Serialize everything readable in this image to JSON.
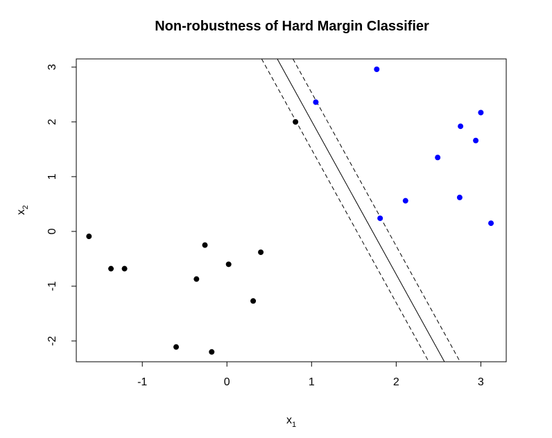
{
  "chart_data": {
    "type": "scatter",
    "title": "Non-robustness of Hard Margin Classifier",
    "xlabel": {
      "base": "x",
      "sub": "1"
    },
    "ylabel": {
      "base": "x",
      "sub": "2"
    },
    "xlim": [
      -1.78,
      3.3
    ],
    "ylim": [
      -2.38,
      3.15
    ],
    "xticks": [
      -1,
      0,
      1,
      2,
      3
    ],
    "yticks": [
      -2,
      -1,
      0,
      1,
      2,
      3
    ],
    "xtick_labels": [
      "-1",
      "0",
      "1",
      "2",
      "3"
    ],
    "ytick_labels": [
      "-2",
      "-1",
      "0",
      "1",
      "2",
      "3"
    ],
    "grid": false,
    "series": [
      {
        "color": "#000000",
        "points": [
          [
            -1.63,
            -0.09
          ],
          [
            -1.37,
            -0.68
          ],
          [
            -1.21,
            -0.68
          ],
          [
            -0.6,
            -2.11
          ],
          [
            -0.36,
            -0.87
          ],
          [
            -0.26,
            -0.25
          ],
          [
            -0.18,
            -2.2
          ],
          [
            0.02,
            -0.6
          ],
          [
            0.31,
            -1.27
          ],
          [
            0.4,
            -0.38
          ],
          [
            0.81,
            2.0
          ]
        ]
      },
      {
        "color": "#0000ff",
        "points": [
          [
            1.05,
            2.36
          ],
          [
            1.77,
            2.96
          ],
          [
            1.81,
            0.24
          ],
          [
            2.11,
            0.56
          ],
          [
            2.49,
            1.35
          ],
          [
            2.76,
            1.92
          ],
          [
            2.75,
            0.62
          ],
          [
            2.94,
            1.66
          ],
          [
            3.0,
            2.17
          ],
          [
            3.12,
            0.15
          ]
        ]
      }
    ],
    "lines": [
      {
        "style": "solid",
        "points": [
          [
            0.595,
            3.15
          ],
          [
            2.57,
            -2.38
          ]
        ]
      },
      {
        "style": "dashed",
        "points": [
          [
            0.41,
            3.15
          ],
          [
            2.385,
            -2.38
          ]
        ]
      },
      {
        "style": "dashed",
        "points": [
          [
            0.78,
            3.15
          ],
          [
            2.755,
            -2.38
          ]
        ]
      }
    ]
  }
}
